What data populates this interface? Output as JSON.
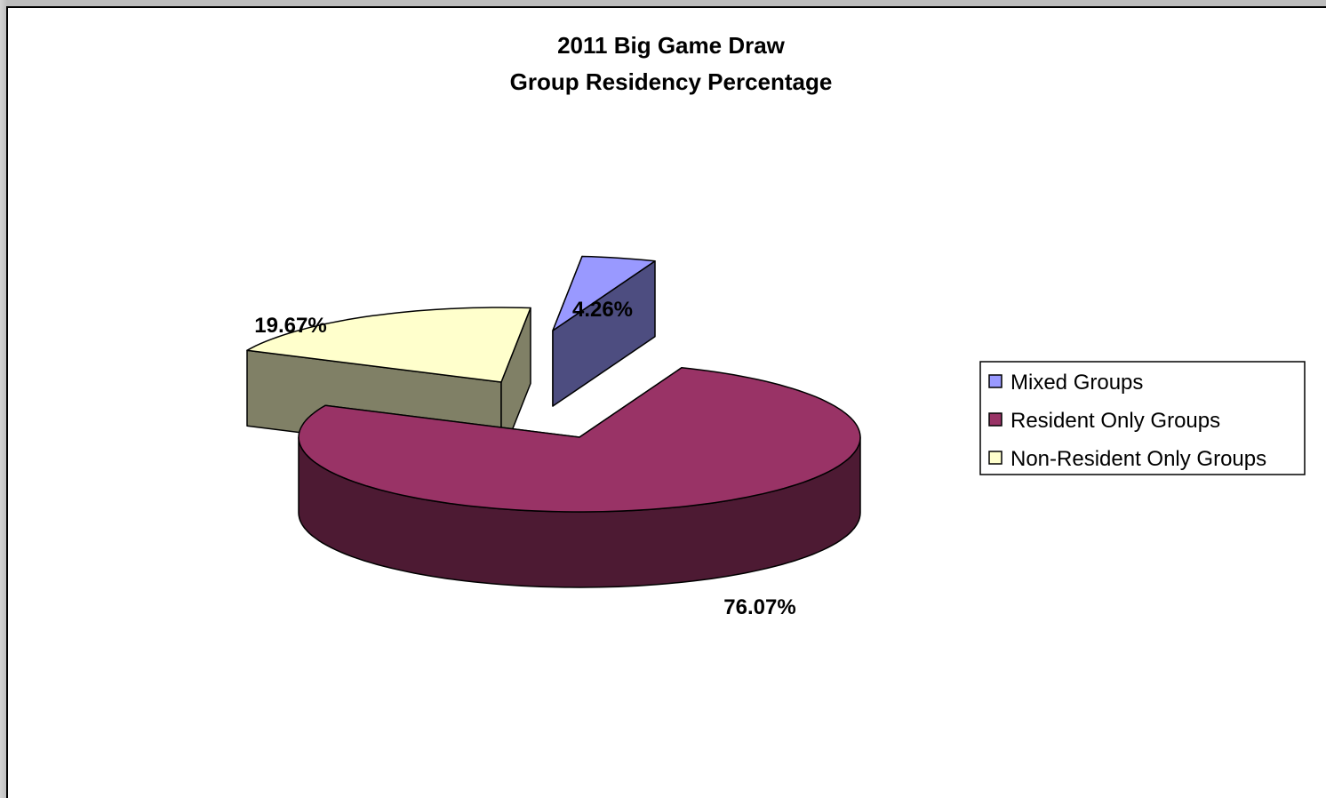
{
  "chart_data": {
    "type": "pie",
    "title": "2011 Big Game Draw",
    "subtitle": "Group Residency Percentage",
    "legend_position": "right",
    "series": [
      {
        "name": "Mixed Groups",
        "value": 4.26,
        "label": "4.26%",
        "color": "#9999ff",
        "side_color": "#4d4d80"
      },
      {
        "name": "Resident Only Groups",
        "value": 76.07,
        "label": "76.07%",
        "color": "#993366",
        "side_color": "#4d1a33"
      },
      {
        "name": "Non-Resident Only Groups",
        "value": 19.67,
        "label": "19.67%",
        "color": "#ffffcc",
        "side_color": "#808066"
      }
    ]
  }
}
